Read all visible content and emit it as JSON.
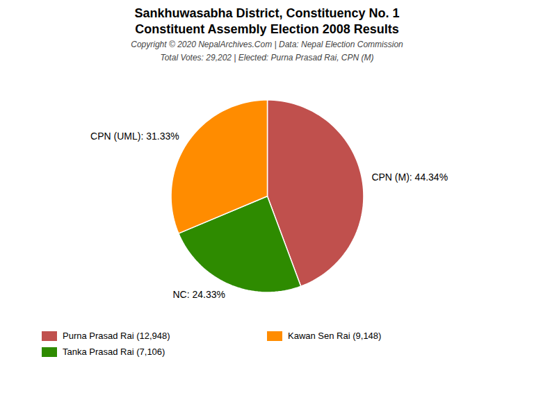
{
  "chart_data": {
    "type": "pie",
    "title": "Sankhuwasabha District, Constituency No. 1",
    "subtitle": "Constituent Assembly Election 2008 Results",
    "annotations": [
      "Copyright © 2020 NepalArchives.Com | Data: Nepal Election Commission",
      "Total Votes: 29,202 | Elected: Purna Prasad Rai, CPN (M)"
    ],
    "categories": [
      "CPN (M): 44.34%",
      "NC: 24.33%",
      "CPN (UML): 31.33%"
    ],
    "values": [
      44.34,
      24.33,
      31.33
    ],
    "colors": [
      "#C0504D",
      "#2E8B00",
      "#FF8C00"
    ],
    "legend": "bottom",
    "series": [
      {
        "name": "Purna Prasad Rai (12,948)",
        "color": "#C0504D"
      },
      {
        "name": "Kawan Sen Rai (9,148)",
        "color": "#FF8C00"
      },
      {
        "name": "Tanka Prasad Rai (7,106)",
        "color": "#2E8B00"
      }
    ]
  }
}
